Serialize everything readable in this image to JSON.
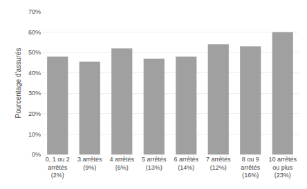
{
  "chart_data": {
    "type": "bar",
    "categories": [
      "0, 1 ou 2\narrêtés\n(2%)",
      "3 arrêtés\n(9%)",
      "4 arrêtés\n(6%)",
      "5 arrêtés\n(13%)",
      "6 arrêtés\n(14%)",
      "7 arrêtés\n(12%)",
      "8 ou 9\narrêtés\n(16%)",
      "10 arrêtés\nou plus\n(23%)"
    ],
    "values": [
      48,
      45.5,
      52,
      47,
      48,
      54,
      53,
      60
    ],
    "color": "#a0a0a0",
    "ylabel": "Pourcentage d'assurés",
    "ylim": [
      0,
      70
    ],
    "yticks": [
      {
        "value": 0,
        "label": "0%"
      },
      {
        "value": 10,
        "label": "10%"
      },
      {
        "value": 20,
        "label": "20%"
      },
      {
        "value": 30,
        "label": "30%"
      },
      {
        "value": 40,
        "label": "40%"
      },
      {
        "value": 50,
        "label": "50%"
      },
      {
        "value": 60,
        "label": "60%"
      },
      {
        "value": 70,
        "label": "70%"
      }
    ],
    "grid": true
  }
}
